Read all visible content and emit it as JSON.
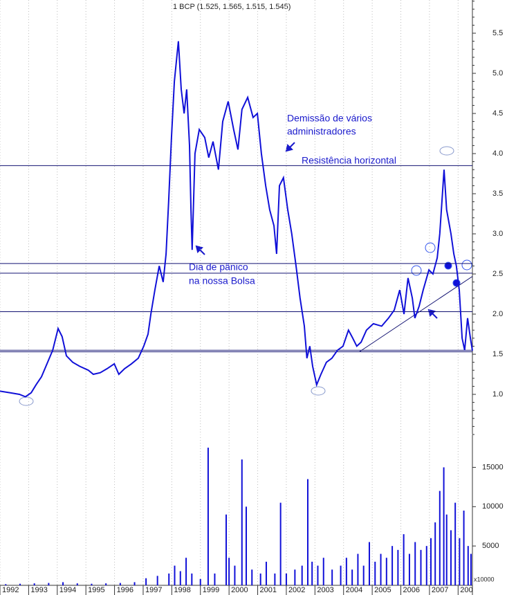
{
  "chart_data": [
    {
      "type": "line",
      "title": "1 BCP (1.525, 1.565, 1.515, 1.545)",
      "color": "#1010d8",
      "grid": true,
      "xlim": [
        1992,
        2008.5
      ],
      "xticks": [
        1992,
        1993,
        1994,
        1995,
        1996,
        1997,
        1998,
        1999,
        2000,
        2001,
        2002,
        2003,
        2004,
        2005,
        2006,
        2007,
        {
          "value": 2008,
          "label": "200"
        }
      ],
      "ylim": [
        0.5,
        5.9
      ],
      "yticks": [
        {
          "value": 1,
          "label": "1.0"
        },
        1.5,
        {
          "value": 2,
          "label": "2.0"
        },
        2.5,
        {
          "value": 3,
          "label": "3.0"
        },
        3.5,
        {
          "value": 4,
          "label": "4.0"
        },
        4.5,
        {
          "value": 5,
          "label": "5.0"
        },
        5.5
      ],
      "x": [
        1992.0,
        1992.36,
        1992.68,
        1992.89,
        1993.09,
        1993.26,
        1993.45,
        1993.64,
        1993.84,
        1994.03,
        1994.17,
        1994.32,
        1994.54,
        1994.78,
        1995.09,
        1995.26,
        1995.5,
        1995.74,
        1995.99,
        1996.15,
        1996.35,
        1996.59,
        1996.83,
        1997.02,
        1997.17,
        1997.27,
        1997.41,
        1997.56,
        1997.7,
        1997.8,
        1997.89,
        1997.99,
        1998.09,
        1998.23,
        1998.33,
        1998.43,
        1998.52,
        1998.62,
        1998.67,
        1998.71,
        1998.81,
        1998.96,
        1999.15,
        1999.29,
        1999.44,
        1999.63,
        1999.78,
        1999.97,
        2000.16,
        2000.31,
        2000.45,
        2000.65,
        2000.84,
        2000.99,
        2001.13,
        2001.28,
        2001.42,
        2001.57,
        2001.66,
        2001.76,
        2001.9,
        2002.05,
        2002.19,
        2002.34,
        2002.48,
        2002.63,
        2002.72,
        2002.82,
        2002.92,
        2003.06,
        2003.21,
        2003.4,
        2003.59,
        2003.79,
        2003.98,
        2004.17,
        2004.32,
        2004.46,
        2004.61,
        2004.8,
        2005.04,
        2005.33,
        2005.57,
        2005.77,
        2005.96,
        2006.11,
        2006.25,
        2006.4,
        2006.49,
        2006.64,
        2006.78,
        2006.98,
        2007.12,
        2007.27,
        2007.36,
        2007.51,
        2007.6,
        2007.75,
        2007.85,
        2007.94,
        2008.04,
        2008.14,
        2008.23,
        2008.33,
        2008.43,
        2008.5
      ],
      "values": [
        1.04,
        1.02,
        1.0,
        0.97,
        1.02,
        1.12,
        1.22,
        1.38,
        1.55,
        1.82,
        1.72,
        1.48,
        1.4,
        1.35,
        1.3,
        1.25,
        1.27,
        1.32,
        1.38,
        1.25,
        1.32,
        1.38,
        1.45,
        1.6,
        1.75,
        2.0,
        2.3,
        2.6,
        2.4,
        2.75,
        3.4,
        4.2,
        4.9,
        5.4,
        4.8,
        4.5,
        4.8,
        4.1,
        3.3,
        2.8,
        4.0,
        4.3,
        4.2,
        3.95,
        4.15,
        3.8,
        4.4,
        4.65,
        4.3,
        4.05,
        4.55,
        4.7,
        4.45,
        4.5,
        4.0,
        3.6,
        3.3,
        3.1,
        2.75,
        3.6,
        3.7,
        3.3,
        3.0,
        2.6,
        2.2,
        1.85,
        1.45,
        1.6,
        1.35,
        1.12,
        1.25,
        1.4,
        1.45,
        1.55,
        1.6,
        1.8,
        1.7,
        1.6,
        1.65,
        1.8,
        1.88,
        1.85,
        1.95,
        2.05,
        2.3,
        2.0,
        2.45,
        2.2,
        1.95,
        2.1,
        2.3,
        2.55,
        2.5,
        2.7,
        3.0,
        3.8,
        3.3,
        3.0,
        2.75,
        2.6,
        2.3,
        1.7,
        1.55,
        1.95,
        1.7,
        1.545
      ],
      "hlines": [
        3.85,
        2.63,
        2.51,
        2.03,
        1.55,
        1.53
      ],
      "trendline": {
        "x": [
          2004.55,
          2008.5
        ],
        "values": [
          1.53,
          2.47
        ]
      },
      "annotations": [
        "Demissão de vários",
        "administradores",
        "Resistência horizontal",
        "Dia de pânico",
        "na nossa Bolsa"
      ]
    },
    {
      "type": "bar",
      "color": "#1010d8",
      "unit_label": "x10000",
      "xlim": [
        1992,
        2008.5
      ],
      "ylim": [
        0,
        19000
      ],
      "yticks": [
        5000,
        10000,
        15000
      ],
      "x": [
        1992.2,
        1992.7,
        1993.2,
        1993.7,
        1994.2,
        1994.7,
        1995.2,
        1995.7,
        1996.2,
        1996.7,
        1997.1,
        1997.5,
        1997.9,
        1998.1,
        1998.3,
        1998.5,
        1998.7,
        1999.0,
        1999.27,
        1999.5,
        1999.9,
        2000.0,
        2000.2,
        2000.45,
        2000.6,
        2000.8,
        2001.1,
        2001.3,
        2001.6,
        2001.8,
        2002.0,
        2002.3,
        2002.55,
        2002.75,
        2002.9,
        2003.1,
        2003.3,
        2003.6,
        2003.9,
        2004.1,
        2004.3,
        2004.5,
        2004.7,
        2004.9,
        2005.1,
        2005.3,
        2005.5,
        2005.7,
        2005.9,
        2006.1,
        2006.3,
        2006.5,
        2006.7,
        2006.9,
        2007.05,
        2007.2,
        2007.36,
        2007.5,
        2007.6,
        2007.75,
        2007.9,
        2008.05,
        2008.2,
        2008.35,
        2008.45
      ],
      "values": [
        150,
        200,
        250,
        300,
        400,
        250,
        200,
        250,
        300,
        400,
        900,
        1200,
        1500,
        2500,
        1800,
        3500,
        1500,
        800,
        17500,
        1500,
        9000,
        3500,
        2500,
        16000,
        10000,
        2000,
        1500,
        3000,
        1500,
        10500,
        1500,
        2000,
        2500,
        13500,
        3000,
        2500,
        3500,
        2000,
        2500,
        3500,
        2000,
        4000,
        2500,
        5500,
        3000,
        4000,
        3500,
        5000,
        4500,
        6500,
        4000,
        5500,
        4500,
        5000,
        6000,
        8000,
        12000,
        15000,
        9000,
        7000,
        10500,
        6000,
        9500,
        5000,
        4000
      ]
    }
  ]
}
